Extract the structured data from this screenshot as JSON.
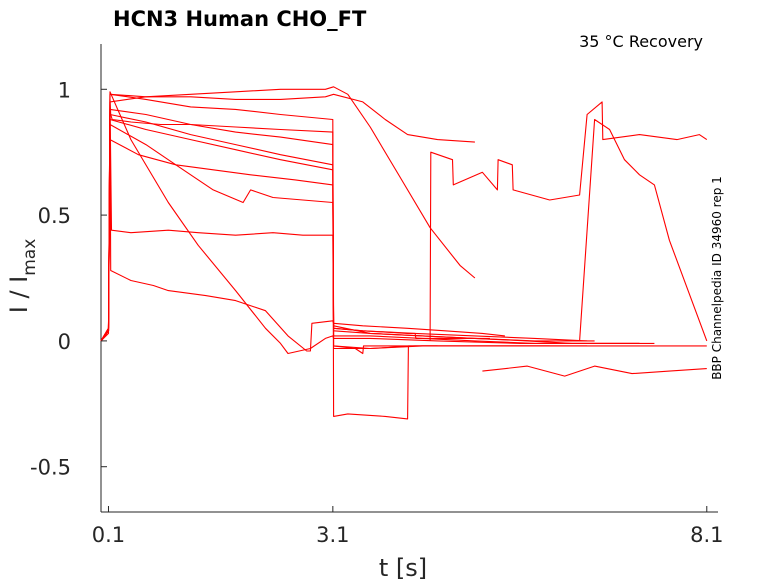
{
  "chart_data": {
    "type": "line",
    "title": "HCN3  Human  CHO_FT",
    "annotation": "35 °C  Recovery",
    "side_label": "BBP Channelpedia ID 34960 rep 1",
    "xlabel": "t [s]",
    "ylabel_main": "I / I",
    "ylabel_sub": "max",
    "xlim": [
      0.0,
      8.25
    ],
    "ylim": [
      -0.68,
      1.18
    ],
    "xticks": [
      {
        "v": 0.1,
        "label": "0.1"
      },
      {
        "v": 3.1,
        "label": "3.1"
      },
      {
        "v": 8.1,
        "label": "8.1"
      }
    ],
    "yticks": [
      {
        "v": 1,
        "label": "1"
      },
      {
        "v": 0.5,
        "label": "0.5"
      },
      {
        "v": 0,
        "label": "0"
      },
      {
        "v": -0.5,
        "label": "-0.5"
      }
    ],
    "color": "#ff0000",
    "grid": false,
    "series": [
      {
        "x": [
          0.0,
          0.1,
          0.12,
          0.13,
          0.15,
          0.4,
          0.8,
          1.2,
          1.8,
          2.4,
          3.1,
          3.11,
          3.3,
          3.8,
          4.1,
          4.11,
          4.5
        ],
        "y": [
          0.0,
          0.03,
          0.96,
          0.9,
          0.88,
          0.87,
          0.86,
          0.86,
          0.85,
          0.84,
          0.83,
          -0.3,
          -0.29,
          -0.3,
          -0.31,
          -0.02,
          -0.02
        ]
      },
      {
        "x": [
          0.0,
          0.1,
          0.12,
          0.14,
          0.4,
          0.9,
          1.3,
          1.8,
          2.3,
          2.7,
          3.1,
          3.11,
          3.5,
          4.1,
          4.2,
          4.21,
          4.8,
          5.2
        ],
        "y": [
          0.0,
          0.05,
          0.95,
          0.44,
          0.43,
          0.44,
          0.43,
          0.42,
          0.43,
          0.42,
          0.42,
          0.05,
          0.04,
          0.03,
          0.03,
          0.01,
          0.01,
          0.01
        ]
      },
      {
        "x": [
          0.0,
          0.1,
          0.12,
          0.13,
          0.4,
          0.7,
          0.9,
          1.4,
          1.8,
          2.2,
          2.5,
          2.75,
          2.8,
          2.82,
          3.1,
          3.11,
          3.5,
          4.1,
          4.6,
          5.1,
          5.4
        ],
        "y": [
          0.0,
          0.04,
          0.92,
          0.28,
          0.24,
          0.22,
          0.2,
          0.18,
          0.16,
          0.12,
          0.02,
          -0.04,
          -0.04,
          0.07,
          0.08,
          0.07,
          0.06,
          0.05,
          0.04,
          0.03,
          0.02
        ]
      },
      {
        "x": [
          0.0,
          0.1,
          0.12,
          0.4,
          0.9,
          1.3,
          1.8,
          2.2,
          2.4,
          2.5,
          2.8,
          3.0,
          3.1,
          3.11,
          3.6,
          4.5,
          5.6,
          6.6,
          7.2
        ],
        "y": [
          0.0,
          0.04,
          0.99,
          0.8,
          0.55,
          0.38,
          0.2,
          0.05,
          -0.01,
          -0.05,
          -0.03,
          0.01,
          0.02,
          0.01,
          0.01,
          0.0,
          -0.01,
          -0.01,
          -0.01
        ]
      },
      {
        "x": [
          0.0,
          0.1,
          0.12,
          0.6,
          1.2,
          1.8,
          2.4,
          3.1,
          3.11,
          3.6,
          4.3,
          5.0,
          5.7,
          6.3,
          6.9,
          7.2
        ],
        "y": [
          0.0,
          0.05,
          0.98,
          0.96,
          0.93,
          0.92,
          0.9,
          0.88,
          0.06,
          0.03,
          0.02,
          0.01,
          0.0,
          -0.01,
          -0.01,
          -0.01
        ]
      },
      {
        "x": [
          0.0,
          0.1,
          0.12,
          0.6,
          1.2,
          1.8,
          2.4,
          3.1,
          3.11,
          3.6,
          4.3,
          5.0,
          5.8,
          6.6,
          7.4,
          8.1
        ],
        "y": [
          0.0,
          0.04,
          0.92,
          0.9,
          0.86,
          0.83,
          0.81,
          0.78,
          -0.02,
          -0.03,
          -0.02,
          -0.02,
          -0.02,
          -0.02,
          -0.02,
          -0.02
        ]
      },
      {
        "x": [
          0.0,
          0.1,
          0.12,
          0.6,
          1.2,
          1.8,
          2.4,
          3.1,
          3.11,
          3.6,
          4.3,
          5.0,
          5.8,
          6.6,
          7.4
        ],
        "y": [
          0.0,
          0.05,
          0.9,
          0.87,
          0.82,
          0.78,
          0.74,
          0.7,
          0.02,
          0.02,
          0.01,
          0.0,
          -0.01,
          -0.01,
          -0.01
        ]
      },
      {
        "x": [
          0.0,
          0.1,
          0.12,
          0.6,
          1.2,
          1.8,
          2.4,
          3.1,
          3.11,
          3.6,
          4.3,
          5.0,
          5.8,
          6.6
        ],
        "y": [
          0.0,
          0.04,
          0.88,
          0.84,
          0.8,
          0.76,
          0.72,
          0.68,
          0.04,
          0.03,
          0.02,
          0.01,
          0.0,
          0.0
        ]
      },
      {
        "x": [
          0.0,
          0.1,
          0.12,
          0.6,
          1.0,
          1.5,
          1.9,
          2.0,
          2.3,
          2.7,
          3.1,
          3.11,
          3.5,
          4.2,
          5.0,
          5.8,
          6.5
        ],
        "y": [
          0.0,
          0.05,
          0.86,
          0.78,
          0.7,
          0.6,
          0.55,
          0.6,
          0.57,
          0.56,
          0.55,
          0.05,
          0.04,
          0.03,
          0.02,
          0.01,
          0.0
        ]
      },
      {
        "x": [
          0.0,
          0.1,
          0.12,
          0.5,
          1.0,
          1.5,
          2.0,
          2.6,
          3.1,
          3.11,
          3.6,
          4.2,
          4.8,
          5.4,
          6.0
        ],
        "y": [
          0.0,
          0.04,
          0.8,
          0.74,
          0.7,
          0.68,
          0.66,
          0.64,
          0.62,
          -0.03,
          -0.03,
          -0.02,
          -0.02,
          -0.02,
          -0.02
        ]
      },
      {
        "x": [
          0.0,
          0.1,
          0.12,
          0.6,
          1.2,
          1.8,
          2.4,
          3.0,
          3.11,
          3.3,
          3.6,
          4.0,
          4.4,
          4.8,
          5.0
        ],
        "y": [
          0.0,
          0.05,
          0.95,
          0.97,
          0.98,
          0.99,
          1.0,
          1.0,
          1.01,
          0.98,
          0.85,
          0.65,
          0.45,
          0.3,
          0.25
        ]
      },
      {
        "x": [
          0.0,
          0.1,
          0.12,
          0.6,
          1.2,
          1.8,
          2.4,
          3.0,
          3.11,
          3.5,
          3.8,
          4.1,
          4.5,
          5.0
        ],
        "y": [
          0.0,
          0.04,
          0.98,
          0.97,
          0.97,
          0.96,
          0.96,
          0.97,
          0.98,
          0.95,
          0.88,
          0.82,
          0.8,
          0.79
        ]
      },
      {
        "x": [
          3.11,
          3.4,
          3.5,
          3.51,
          4.0,
          4.6,
          5.2,
          5.8,
          6.3,
          6.5
        ],
        "y": [
          -0.02,
          -0.03,
          -0.05,
          -0.02,
          -0.02,
          -0.02,
          -0.02,
          -0.02,
          -0.02,
          -0.02
        ]
      },
      {
        "x": [
          4.4,
          4.41,
          4.7,
          4.71,
          5.1,
          5.3,
          5.31,
          5.5,
          5.51,
          6.0,
          6.4,
          6.5,
          6.7,
          6.71,
          7.2,
          7.7,
          8.0,
          8.1
        ],
        "y": [
          0.0,
          0.75,
          0.72,
          0.62,
          0.67,
          0.6,
          0.72,
          0.7,
          0.6,
          0.56,
          0.58,
          0.9,
          0.95,
          0.8,
          0.82,
          0.8,
          0.82,
          0.8
        ]
      },
      {
        "x": [
          6.4,
          6.6,
          6.8,
          7.0,
          7.2,
          7.4,
          7.6,
          8.1
        ],
        "y": [
          0.0,
          0.88,
          0.84,
          0.72,
          0.66,
          0.62,
          0.4,
          0.0
        ]
      },
      {
        "x": [
          5.1,
          5.7,
          6.2,
          6.6,
          7.1,
          7.6,
          8.1
        ],
        "y": [
          -0.12,
          -0.1,
          -0.14,
          -0.1,
          -0.13,
          -0.12,
          -0.11
        ]
      }
    ]
  }
}
